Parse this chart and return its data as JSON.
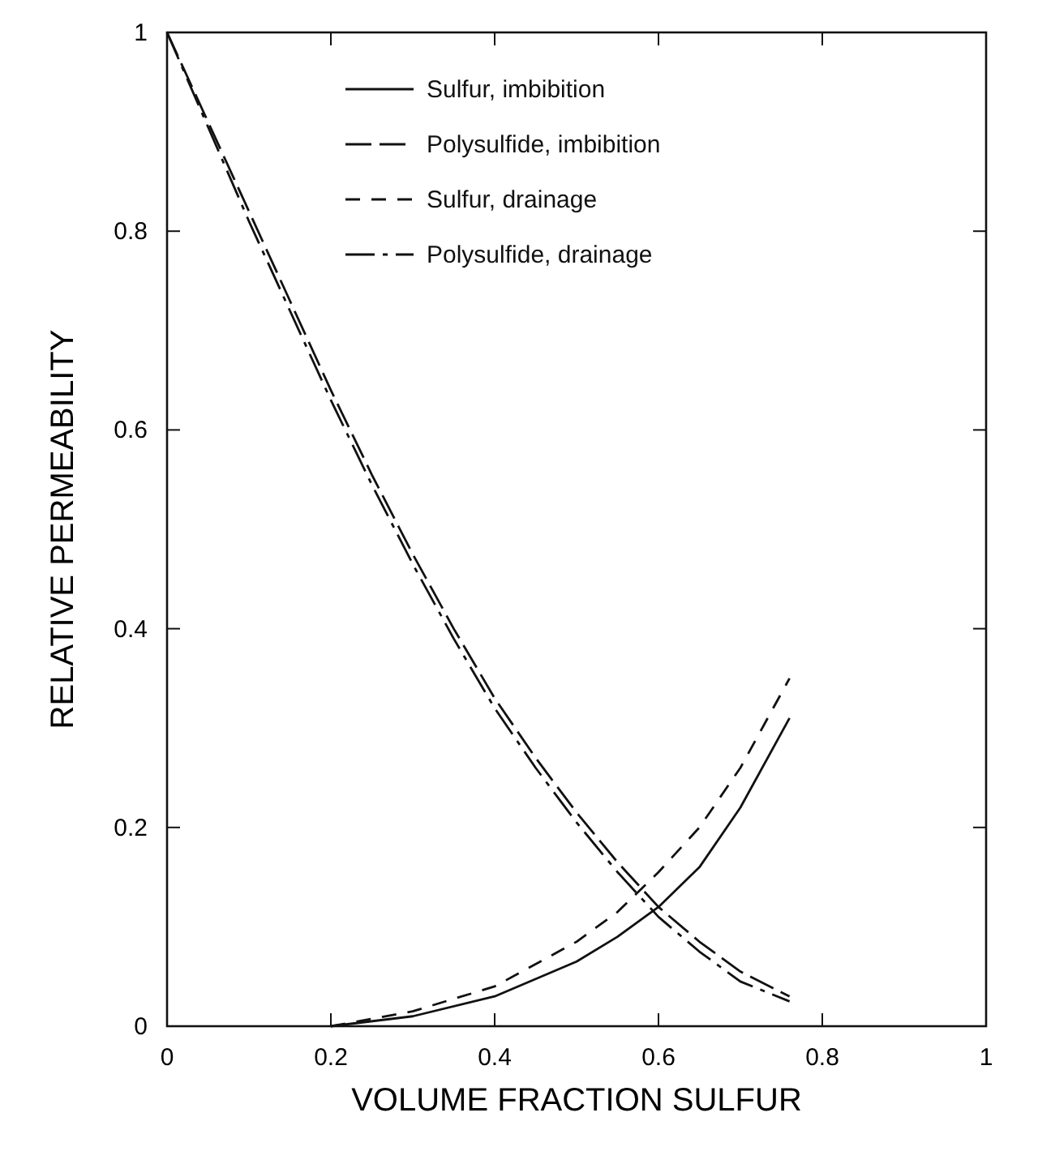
{
  "chart_data": {
    "type": "line",
    "xlabel": "VOLUME FRACTION SULFUR",
    "ylabel": "RELATIVE PERMEABILITY",
    "xlim": [
      0,
      1
    ],
    "ylim": [
      0,
      1
    ],
    "xticks": [
      0,
      0.2,
      0.4,
      0.6,
      0.8,
      1
    ],
    "yticks": [
      0,
      0.2,
      0.4,
      0.6,
      0.8,
      1
    ],
    "grid": false,
    "legend": "top",
    "marker": "none",
    "series": [
      {
        "name": "Sulfur, imbibition",
        "color": "#111111",
        "line_style": "solid",
        "x": [
          0.2,
          0.3,
          0.4,
          0.5,
          0.55,
          0.6,
          0.65,
          0.7,
          0.76
        ],
        "values": [
          0,
          0.01,
          0.03,
          0.065,
          0.09,
          0.12,
          0.16,
          0.22,
          0.31
        ]
      },
      {
        "name": "Polysulfide, imbibition",
        "color": "#111111",
        "line_style": "dashed",
        "x": [
          0,
          0.05,
          0.1,
          0.15,
          0.2,
          0.25,
          0.3,
          0.35,
          0.4,
          0.45,
          0.5,
          0.55,
          0.6,
          0.65,
          0.7,
          0.76
        ],
        "values": [
          1,
          0.91,
          0.82,
          0.73,
          0.64,
          0.555,
          0.475,
          0.4,
          0.33,
          0.27,
          0.215,
          0.165,
          0.12,
          0.085,
          0.055,
          0.03
        ]
      },
      {
        "name": "Sulfur, drainage",
        "color": "#111111",
        "line_style": "dashed",
        "x": [
          0.2,
          0.3,
          0.4,
          0.5,
          0.55,
          0.6,
          0.65,
          0.7,
          0.76
        ],
        "values": [
          0,
          0.015,
          0.04,
          0.085,
          0.115,
          0.155,
          0.2,
          0.26,
          0.35
        ]
      },
      {
        "name": "Polysulfide, drainage",
        "color": "#111111",
        "line_style": "dashed",
        "x": [
          0,
          0.05,
          0.1,
          0.15,
          0.2,
          0.25,
          0.3,
          0.35,
          0.4,
          0.45,
          0.5,
          0.55,
          0.6,
          0.65,
          0.7,
          0.76
        ],
        "values": [
          1,
          0.905,
          0.81,
          0.72,
          0.63,
          0.545,
          0.465,
          0.39,
          0.32,
          0.26,
          0.205,
          0.155,
          0.11,
          0.075,
          0.045,
          0.025
        ]
      }
    ]
  }
}
